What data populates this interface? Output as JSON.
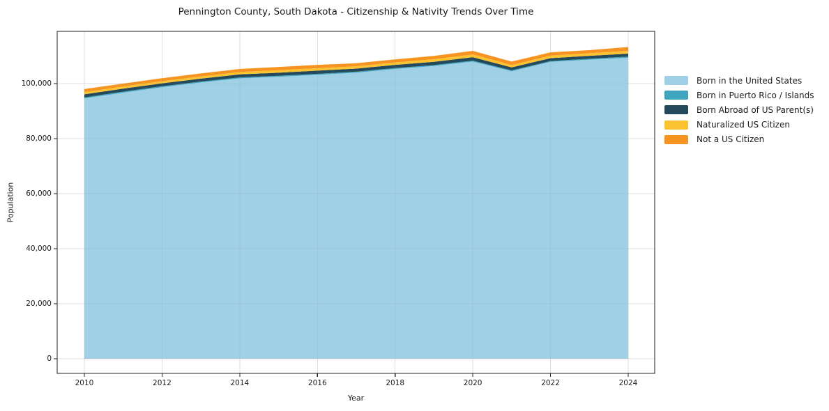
{
  "chart_data": {
    "type": "area",
    "stacked": true,
    "title": "Pennington County, South Dakota - Citizenship & Nativity Trends Over Time",
    "xlabel": "Year",
    "ylabel": "Population",
    "x": [
      2010,
      2011,
      2012,
      2013,
      2014,
      2015,
      2016,
      2017,
      2018,
      2019,
      2020,
      2021,
      2022,
      2023,
      2024
    ],
    "series": [
      {
        "name": "Born in the United States",
        "color": "#a0d0e6",
        "values": [
          94600,
          96700,
          98700,
          100400,
          101900,
          102500,
          103200,
          104000,
          105300,
          106400,
          108000,
          104500,
          107900,
          108700,
          109400
        ]
      },
      {
        "name": "Born in Puerto Rico / Islands",
        "color": "#3fa5bf",
        "values": [
          400,
          400,
          350,
          350,
          350,
          350,
          350,
          350,
          350,
          350,
          350,
          300,
          300,
          350,
          400
        ]
      },
      {
        "name": "Born Abroad of US Parent(s)",
        "color": "#24495c",
        "values": [
          1100,
          1050,
          1050,
          1050,
          1100,
          1100,
          1150,
          1100,
          1150,
          1150,
          1250,
          1100,
          1050,
          1050,
          1100
        ]
      },
      {
        "name": "Naturalized US Citizen",
        "color": "#fcc331",
        "values": [
          800,
          800,
          800,
          800,
          850,
          900,
          900,
          850,
          900,
          950,
          1000,
          850,
          900,
          950,
          1000
        ]
      },
      {
        "name": "Not a US Citizen",
        "color": "#f79421",
        "values": [
          1100,
          1050,
          1050,
          1100,
          1100,
          1200,
          1200,
          1100,
          1100,
          1200,
          1300,
          1250,
          1200,
          1100,
          1400
        ]
      }
    ],
    "x_ticks": [
      2010,
      2012,
      2014,
      2016,
      2018,
      2020,
      2022,
      2024
    ],
    "y_ticks": [
      0,
      20000,
      40000,
      60000,
      80000,
      100000
    ],
    "y_tick_labels": [
      "0",
      "20,000",
      "40,000",
      "60,000",
      "80,000",
      "100,000"
    ],
    "xlim": [
      2009.3,
      2024.68
    ],
    "ylim": [
      -5300,
      119200
    ],
    "grid": true,
    "legend_position": "right",
    "grid_color": "#ececec",
    "border_color": "#222222",
    "text_color": "#1a1a1a",
    "background_color": "#ffffff"
  }
}
